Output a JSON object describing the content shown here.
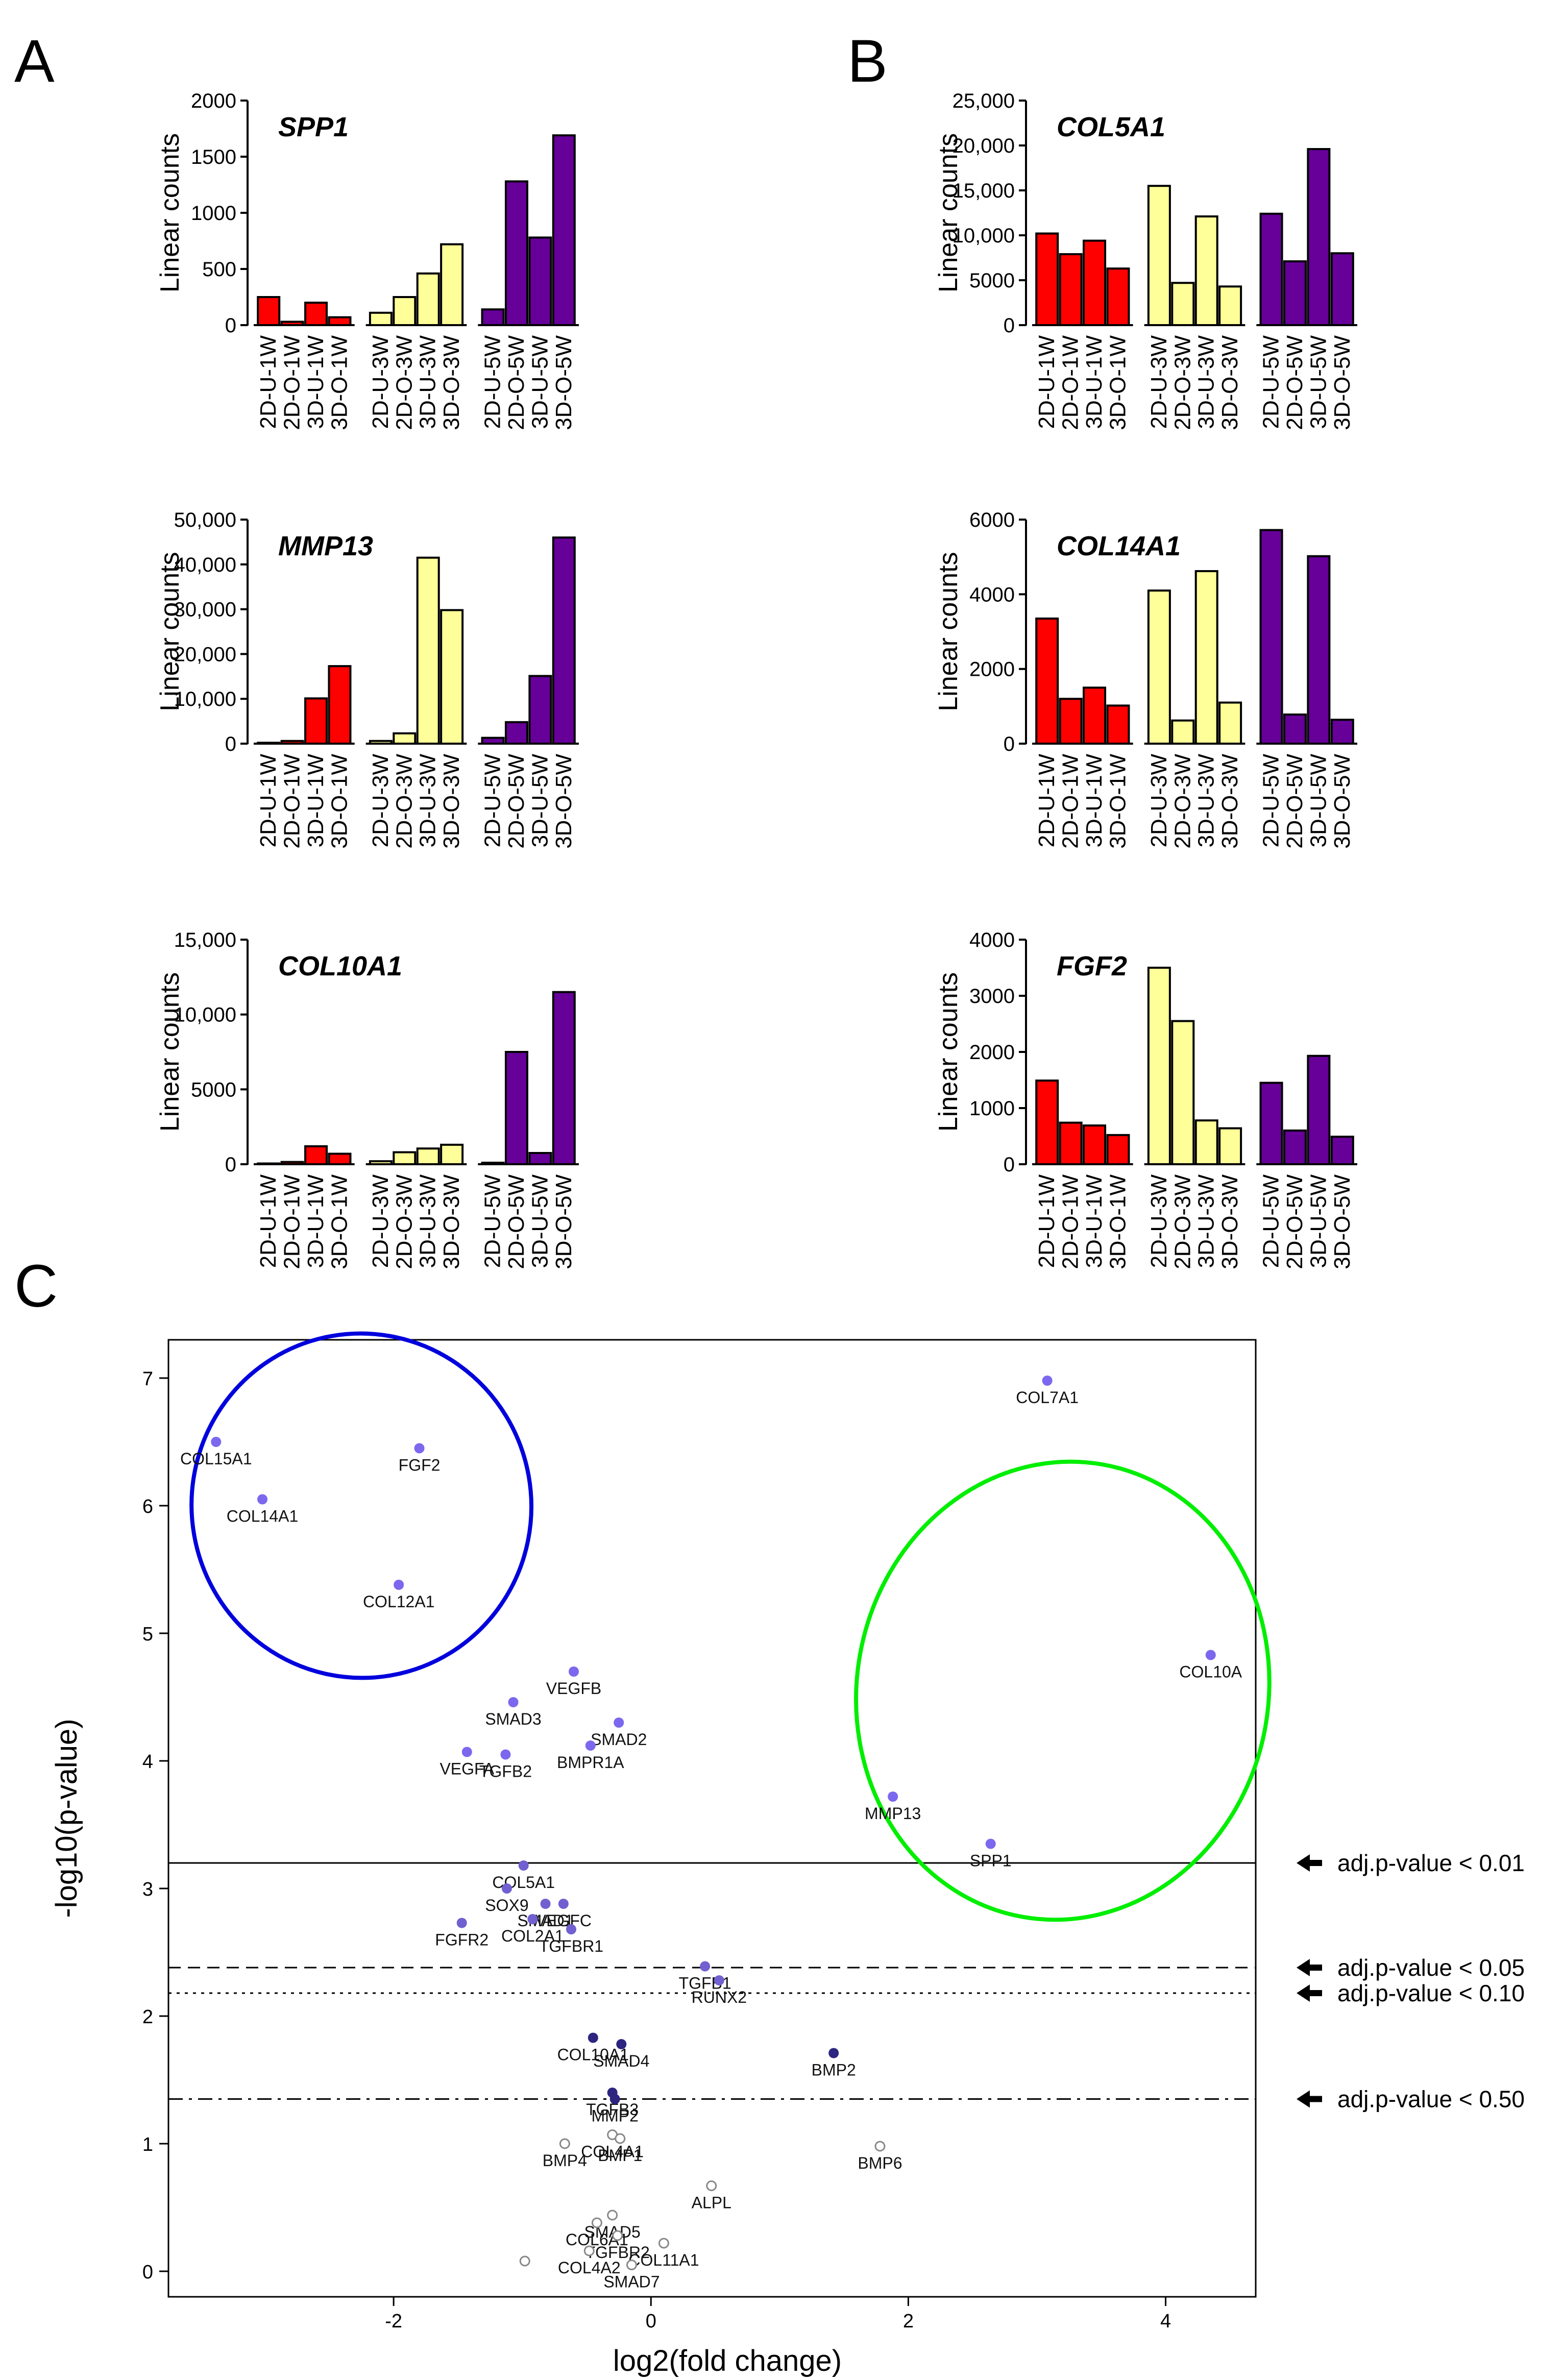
{
  "figure": {
    "panel_labels": [
      "A",
      "B",
      "C"
    ]
  },
  "chart_data": [
    {
      "type": "bar",
      "panel": "A",
      "title": "SPP1",
      "ylabel": "Linear counts",
      "ylim": [
        0,
        2000
      ],
      "yticks": [
        0,
        500,
        1000,
        1500,
        2000
      ],
      "ytick_labels": [
        "0",
        "500",
        "1000",
        "1500",
        "2000"
      ],
      "categories": [
        "2D-U-1W",
        "2D-O-1W",
        "3D-U-1W",
        "3D-O-1W",
        "2D-U-3W",
        "2D-O-3W",
        "3D-U-3W",
        "3D-O-3W",
        "2D-U-5W",
        "2D-O-5W",
        "3D-U-5W",
        "3D-O-5W"
      ],
      "values": [
        250,
        30,
        200,
        70,
        110,
        250,
        460,
        720,
        140,
        1280,
        780,
        1690
      ],
      "colors": [
        "#ff0000",
        "#ff0000",
        "#ff0000",
        "#ff0000",
        "#ffff99",
        "#ffff99",
        "#ffff99",
        "#ffff99",
        "#660099",
        "#660099",
        "#660099",
        "#660099"
      ]
    },
    {
      "type": "bar",
      "panel": "B",
      "title": "COL5A1",
      "ylabel": "Linear counts",
      "ylim": [
        0,
        25000
      ],
      "yticks": [
        0,
        5000,
        10000,
        15000,
        20000,
        25000
      ],
      "ytick_labels": [
        "0",
        "5000",
        "10,000",
        "15,000",
        "20,000",
        "25,000"
      ],
      "categories": [
        "2D-U-1W",
        "2D-O-1W",
        "3D-U-1W",
        "3D-O-1W",
        "2D-U-3W",
        "2D-O-3W",
        "3D-U-3W",
        "3D-O-3W",
        "2D-U-5W",
        "2D-O-5W",
        "3D-U-5W",
        "3D-O-5W"
      ],
      "values": [
        10200,
        7900,
        9400,
        6300,
        15500,
        4700,
        12100,
        4300,
        12400,
        7100,
        19600,
        8000
      ],
      "colors": [
        "#ff0000",
        "#ff0000",
        "#ff0000",
        "#ff0000",
        "#ffff99",
        "#ffff99",
        "#ffff99",
        "#ffff99",
        "#660099",
        "#660099",
        "#660099",
        "#660099"
      ]
    },
    {
      "type": "bar",
      "panel": "A",
      "title": "MMP13",
      "ylabel": "Linear counts",
      "ylim": [
        0,
        50000
      ],
      "yticks": [
        0,
        10000,
        20000,
        30000,
        40000,
        50000
      ],
      "ytick_labels": [
        "0",
        "10,000",
        "20,000",
        "30,000",
        "40,000",
        "50,000"
      ],
      "categories": [
        "2D-U-1W",
        "2D-O-1W",
        "3D-U-1W",
        "3D-O-1W",
        "2D-U-3W",
        "2D-O-3W",
        "3D-U-3W",
        "3D-O-3W",
        "2D-U-5W",
        "2D-O-5W",
        "3D-U-5W",
        "3D-O-5W"
      ],
      "values": [
        200,
        600,
        10100,
        17300,
        600,
        2300,
        41500,
        29800,
        1300,
        4800,
        15100,
        46000
      ],
      "colors": [
        "#ff0000",
        "#ff0000",
        "#ff0000",
        "#ff0000",
        "#ffff99",
        "#ffff99",
        "#ffff99",
        "#ffff99",
        "#660099",
        "#660099",
        "#660099",
        "#660099"
      ]
    },
    {
      "type": "bar",
      "panel": "B",
      "title": "COL14A1",
      "ylabel": "Linear counts",
      "ylim": [
        0,
        6000
      ],
      "yticks": [
        0,
        2000,
        4000,
        6000
      ],
      "ytick_labels": [
        "0",
        "2000",
        "4000",
        "6000"
      ],
      "categories": [
        "2D-U-1W",
        "2D-O-1W",
        "3D-U-1W",
        "3D-O-1W",
        "2D-U-3W",
        "2D-O-3W",
        "3D-U-3W",
        "3D-O-3W",
        "2D-U-5W",
        "2D-O-5W",
        "3D-U-5W",
        "3D-O-5W"
      ],
      "values": [
        3350,
        1200,
        1500,
        1020,
        4100,
        620,
        4620,
        1100,
        5720,
        780,
        5020,
        640
      ],
      "colors": [
        "#ff0000",
        "#ff0000",
        "#ff0000",
        "#ff0000",
        "#ffff99",
        "#ffff99",
        "#ffff99",
        "#ffff99",
        "#660099",
        "#660099",
        "#660099",
        "#660099"
      ]
    },
    {
      "type": "bar",
      "panel": "A",
      "title": "COL10A1",
      "ylabel": "Linear counts",
      "ylim": [
        0,
        15000
      ],
      "yticks": [
        0,
        5000,
        10000,
        15000
      ],
      "ytick_labels": [
        "0",
        "5000",
        "10,000",
        "15,000"
      ],
      "categories": [
        "2D-U-1W",
        "2D-O-1W",
        "3D-U-1W",
        "3D-O-1W",
        "2D-U-3W",
        "2D-O-3W",
        "3D-U-3W",
        "3D-O-3W",
        "2D-U-5W",
        "2D-O-5W",
        "3D-U-5W",
        "3D-O-5W"
      ],
      "values": [
        50,
        150,
        1200,
        700,
        200,
        800,
        1050,
        1300,
        100,
        7500,
        750,
        11500
      ],
      "colors": [
        "#ff0000",
        "#ff0000",
        "#ff0000",
        "#ff0000",
        "#ffff99",
        "#ffff99",
        "#ffff99",
        "#ffff99",
        "#660099",
        "#660099",
        "#660099",
        "#660099"
      ]
    },
    {
      "type": "bar",
      "panel": "B",
      "title": "FGF2",
      "ylabel": "Linear counts",
      "ylim": [
        0,
        4000
      ],
      "yticks": [
        0,
        1000,
        2000,
        3000,
        4000
      ],
      "ytick_labels": [
        "0",
        "1000",
        "2000",
        "3000",
        "4000"
      ],
      "categories": [
        "2D-U-1W",
        "2D-O-1W",
        "3D-U-1W",
        "3D-O-1W",
        "2D-U-3W",
        "2D-O-3W",
        "3D-U-3W",
        "3D-O-3W",
        "2D-U-5W",
        "2D-O-5W",
        "3D-U-5W",
        "3D-O-5W"
      ],
      "values": [
        1490,
        740,
        690,
        520,
        3500,
        2550,
        780,
        640,
        1450,
        600,
        1930,
        490
      ],
      "colors": [
        "#ff0000",
        "#ff0000",
        "#ff0000",
        "#ff0000",
        "#ffff99",
        "#ffff99",
        "#ffff99",
        "#ffff99",
        "#660099",
        "#660099",
        "#660099",
        "#660099"
      ]
    },
    {
      "type": "scatter",
      "panel": "C",
      "xlabel": "log2(fold change)",
      "ylabel": "-log10(p-value)",
      "xlim": [
        -3.75,
        4.7
      ],
      "ylim": [
        -0.2,
        7.3
      ],
      "xticks": [
        -2,
        0,
        2,
        4
      ],
      "xtick_labels": [
        "-2",
        "0",
        "2",
        "4"
      ],
      "yticks": [
        0,
        1,
        2,
        3,
        4,
        5,
        6,
        7
      ],
      "ytick_labels": [
        "0",
        "1",
        "2",
        "3",
        "4",
        "5",
        "6",
        "7"
      ],
      "thresholds": [
        {
          "y": 3.2,
          "style": "solid",
          "label": "adj.p-value < 0.01"
        },
        {
          "y": 2.38,
          "style": "dashed",
          "label": "adj.p-value < 0.05"
        },
        {
          "y": 2.18,
          "style": "dotted",
          "label": "adj.p-value < 0.10"
        },
        {
          "y": 1.35,
          "style": "dashdot",
          "label": "adj.p-value < 0.50"
        }
      ],
      "regions": [
        {
          "color": "#0000dd",
          "cx": -2.25,
          "cy": 6.0,
          "rx": 1.32,
          "ry": 1.35,
          "rotation": -10
        },
        {
          "color": "#00ee00",
          "cx": 3.2,
          "cy": 4.55,
          "rx": 1.6,
          "ry": 1.8,
          "rotation": 10
        }
      ],
      "points": [
        {
          "gene": "COL7A1",
          "x": 3.08,
          "y": 6.98,
          "kind": "sig"
        },
        {
          "gene": "COL15A1",
          "x": -3.38,
          "y": 6.5,
          "kind": "sig"
        },
        {
          "gene": "FGF2",
          "x": -1.8,
          "y": 6.45,
          "kind": "sig"
        },
        {
          "gene": "COL14A1",
          "x": -3.02,
          "y": 6.05,
          "kind": "sig"
        },
        {
          "gene": "COL12A1",
          "x": -1.96,
          "y": 5.38,
          "kind": "sig"
        },
        {
          "gene": "COL10A",
          "x": 4.35,
          "y": 4.83,
          "kind": "sig"
        },
        {
          "gene": "VEGFB",
          "x": -0.6,
          "y": 4.7,
          "kind": "sig"
        },
        {
          "gene": "SMAD3",
          "x": -1.07,
          "y": 4.46,
          "kind": "sig"
        },
        {
          "gene": "SMAD2",
          "x": -0.25,
          "y": 4.3,
          "kind": "sig"
        },
        {
          "gene": "BMPR1A",
          "x": -0.47,
          "y": 4.12,
          "kind": "sig"
        },
        {
          "gene": "VEGFA",
          "x": -1.43,
          "y": 4.07,
          "kind": "sig"
        },
        {
          "gene": "TGFB2",
          "x": -1.13,
          "y": 4.05,
          "kind": "sig"
        },
        {
          "gene": "MMP13",
          "x": 1.88,
          "y": 3.72,
          "kind": "sig"
        },
        {
          "gene": "SPP1",
          "x": 2.64,
          "y": 3.35,
          "kind": "sig"
        },
        {
          "gene": "COL5A1",
          "x": -0.99,
          "y": 3.18,
          "kind": "mid"
        },
        {
          "gene": "SOX9",
          "x": -1.12,
          "y": 3.0,
          "kind": "mid"
        },
        {
          "gene": "SMAD1",
          "x": -0.82,
          "y": 2.88,
          "kind": "mid"
        },
        {
          "gene": "VEGFC",
          "x": -0.68,
          "y": 2.88,
          "kind": "mid"
        },
        {
          "gene": "COL2A1",
          "x": -0.92,
          "y": 2.76,
          "kind": "mid"
        },
        {
          "gene": "TGFBR1",
          "x": -0.62,
          "y": 2.68,
          "kind": "mid"
        },
        {
          "gene": "FGFR2",
          "x": -1.47,
          "y": 2.73,
          "kind": "mid"
        },
        {
          "gene": "TGFB1",
          "x": 0.42,
          "y": 2.39,
          "kind": "mid"
        },
        {
          "gene": "RUNX2",
          "x": 0.53,
          "y": 2.28,
          "kind": "mid"
        },
        {
          "gene": "COL10A1",
          "x": -0.45,
          "y": 1.83,
          "kind": "dark"
        },
        {
          "gene": "SMAD4",
          "x": -0.23,
          "y": 1.78,
          "kind": "dark"
        },
        {
          "gene": "BMP2",
          "x": 1.42,
          "y": 1.71,
          "kind": "dark"
        },
        {
          "gene": "TGFB3",
          "x": -0.3,
          "y": 1.4,
          "kind": "dark"
        },
        {
          "gene": "MMP2",
          "x": -0.28,
          "y": 1.35,
          "kind": "dark"
        },
        {
          "gene": "COL4A1",
          "x": -0.3,
          "y": 1.07,
          "kind": "open"
        },
        {
          "gene": "BMP1",
          "x": -0.24,
          "y": 1.04,
          "kind": "open"
        },
        {
          "gene": "BMP4",
          "x": -0.67,
          "y": 1.0,
          "kind": "open"
        },
        {
          "gene": "BMP6",
          "x": 1.78,
          "y": 0.98,
          "kind": "open"
        },
        {
          "gene": "ALPL",
          "x": 0.47,
          "y": 0.67,
          "kind": "open"
        },
        {
          "gene": "SMAD5",
          "x": -0.3,
          "y": 0.44,
          "kind": "open"
        },
        {
          "gene": "COL6A1",
          "x": -0.42,
          "y": 0.38,
          "kind": "open"
        },
        {
          "gene": "TGFBR2",
          "x": -0.26,
          "y": 0.28,
          "kind": "open"
        },
        {
          "gene": "COL11A1",
          "x": 0.1,
          "y": 0.22,
          "kind": "open"
        },
        {
          "gene": "COL4A2",
          "x": -0.48,
          "y": 0.16,
          "kind": "open"
        },
        {
          "gene": "SMAD7",
          "x": -0.15,
          "y": 0.05,
          "kind": "open"
        },
        {
          "gene": "",
          "x": -0.98,
          "y": 0.08,
          "kind": "open"
        }
      ]
    }
  ]
}
